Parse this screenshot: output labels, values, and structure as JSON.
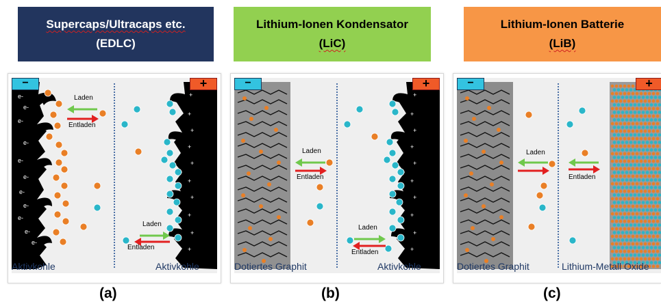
{
  "headers": {
    "edlc": {
      "line1": "Supercaps/Ultracaps etc.",
      "line2": "(EDLC)",
      "bg": "#22355e",
      "fg": "#ffffff"
    },
    "lic": {
      "line1": "Lithium-Ionen Kondensator",
      "line2": "(LiC)",
      "bg": "#92d050",
      "fg": "#000000"
    },
    "lib": {
      "line1": "Lithium-Ionen Batterie",
      "line2": "(LiB)",
      "bg": "#f79646",
      "fg": "#000000"
    }
  },
  "symbols": {
    "minus": "−",
    "plus": "+",
    "electron": "e-",
    "ion_plus": "+",
    "ion_minus": "−"
  },
  "arrows": {
    "charge": "Laden",
    "discharge": "Entladen"
  },
  "panels": {
    "a": {
      "left_caption": "Aktivkohle",
      "right_caption": "Aktivkohle",
      "label": "(a)"
    },
    "b": {
      "left_caption": "Dotiertes Graphit",
      "right_caption": "Aktivkohle",
      "label": "(b)"
    },
    "c": {
      "left_caption": "Dotiertes Graphit",
      "right_caption": "Lithium-Metall Oxide",
      "label": "(c)"
    }
  },
  "colors": {
    "cation": "#e97f26",
    "anion": "#2ab6c9",
    "charge_arrow": "#70c84c",
    "discharge_arrow": "#e22020",
    "minus_terminal": "#33c3e0",
    "plus_terminal": "#f05a28",
    "separator": "#4a6fa5",
    "caption": "#1f3864"
  }
}
